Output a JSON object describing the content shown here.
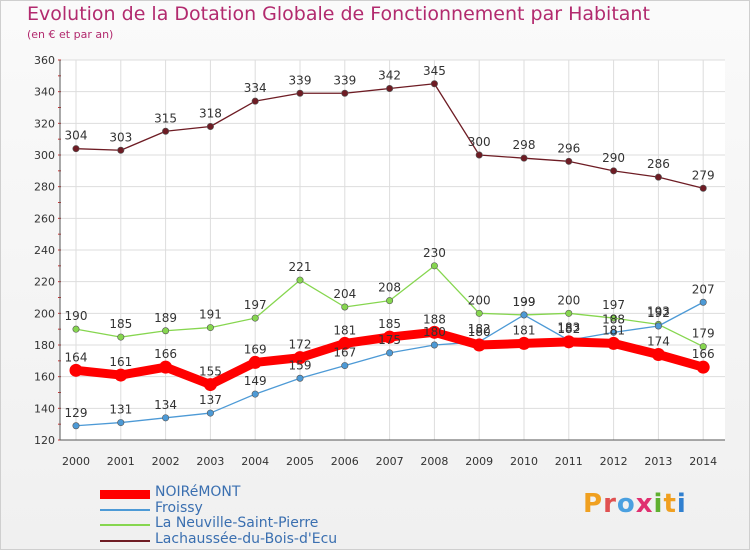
{
  "title": "Evolution de la Dotation Globale de Fonctionnement par Habitant",
  "subtitle": "(en € et par an)",
  "logo_text": "Proxiti",
  "chart_data": {
    "type": "line",
    "title": "Evolution de la Dotation Globale de Fonctionnement par Habitant",
    "subtitle": "(en € et par an)",
    "x": [
      2000,
      2001,
      2002,
      2003,
      2004,
      2005,
      2006,
      2007,
      2008,
      2009,
      2010,
      2011,
      2012,
      2013,
      2014
    ],
    "ylim": [
      120,
      360
    ],
    "yticks": [
      120,
      140,
      160,
      180,
      200,
      220,
      240,
      260,
      280,
      300,
      320,
      340,
      360
    ],
    "grid": true,
    "legend_position": "bottom-left",
    "series": [
      {
        "name": "NOIRéMONT",
        "color": "#ff0000",
        "values": [
          164,
          161,
          166,
          155,
          169,
          172,
          181,
          185,
          188,
          180,
          181,
          182,
          181,
          174,
          166
        ]
      },
      {
        "name": "Froissy",
        "color": "#4d9ad6",
        "values": [
          129,
          131,
          134,
          137,
          149,
          159,
          167,
          175,
          180,
          182,
          199,
          183,
          188,
          192,
          207
        ]
      },
      {
        "name": "La Neuville-Saint-Pierre",
        "color": "#86d64f",
        "values": [
          190,
          185,
          189,
          191,
          197,
          221,
          204,
          208,
          230,
          200,
          199,
          200,
          197,
          193,
          179
        ]
      },
      {
        "name": "Lachaussée-du-Bois-d'Ecu",
        "color": "#6e1c24",
        "values": [
          304,
          303,
          315,
          318,
          334,
          339,
          339,
          342,
          345,
          300,
          298,
          296,
          290,
          286,
          279
        ]
      }
    ]
  }
}
